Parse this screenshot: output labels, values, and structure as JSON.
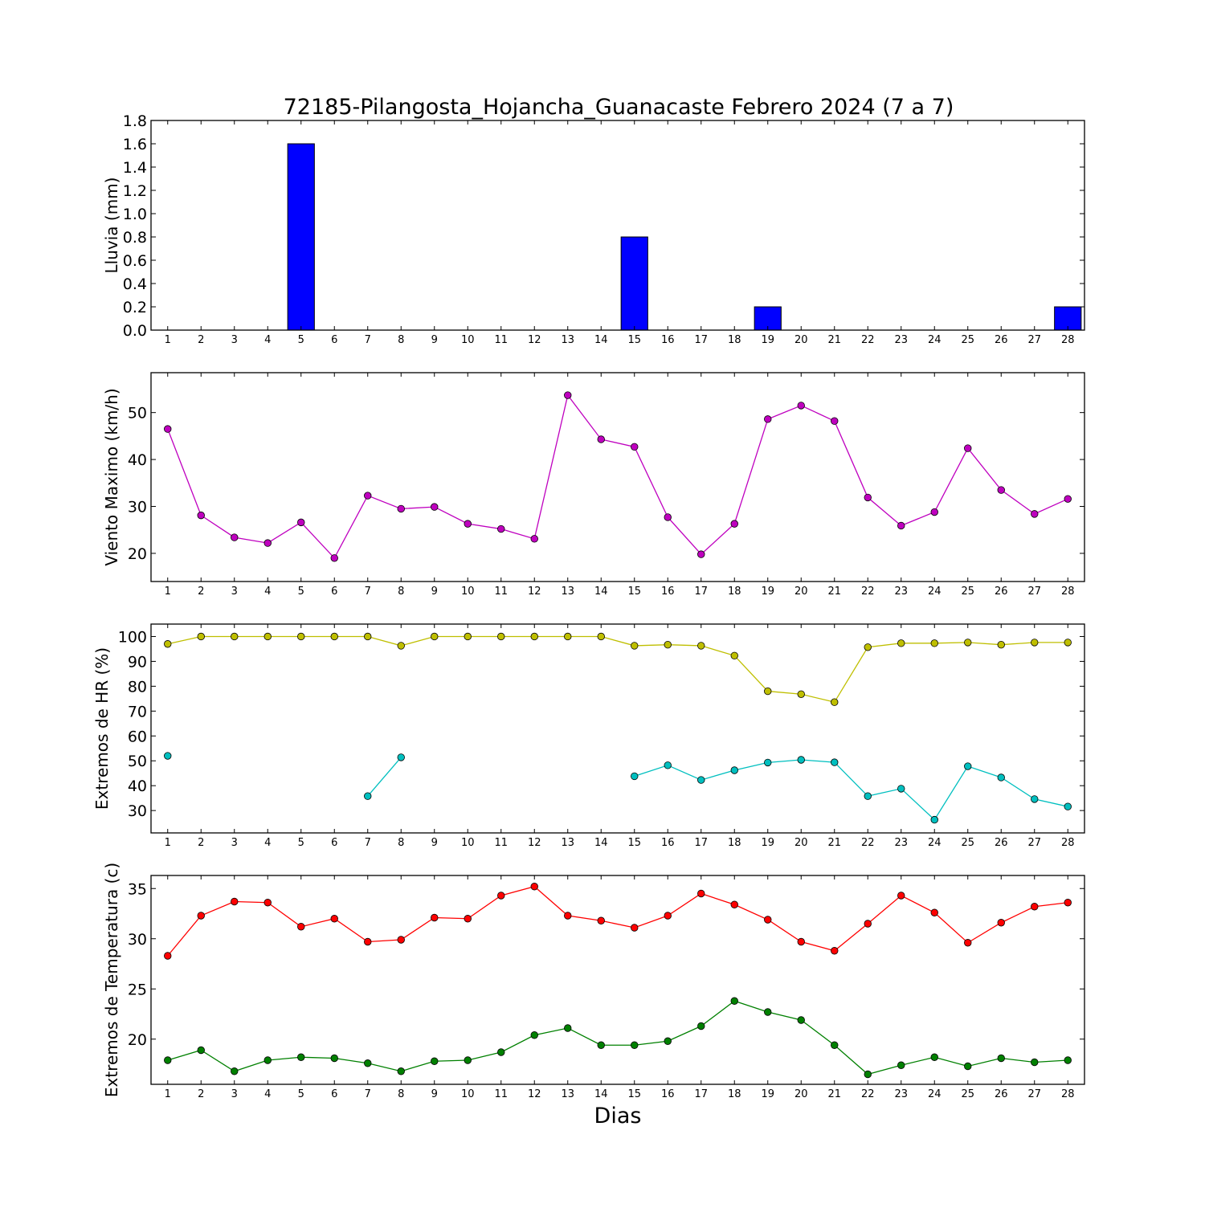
{
  "chart_data": [
    {
      "type": "bar",
      "title": "72185-Pilangosta_Hojancha_Guanacaste Febrero 2024  (7 a 7)",
      "ylabel": "Lluvia (mm)",
      "xlabel": "",
      "ylim": [
        0,
        1.8
      ],
      "yticks": [
        0.0,
        0.2,
        0.4,
        0.6,
        0.8,
        1.0,
        1.2,
        1.4,
        1.6,
        1.8
      ],
      "ytick_labels": [
        "0.0",
        "0.2",
        "0.4",
        "0.6",
        "0.8",
        "1.0",
        "1.2",
        "1.4",
        "1.6",
        "1.8"
      ],
      "categories": [
        1,
        2,
        3,
        4,
        5,
        6,
        7,
        8,
        9,
        10,
        11,
        12,
        13,
        14,
        15,
        16,
        17,
        18,
        19,
        20,
        21,
        22,
        23,
        24,
        25,
        26,
        27,
        28
      ],
      "values": [
        0,
        0,
        0,
        0,
        1.6,
        0,
        0,
        0,
        0,
        0,
        0,
        0,
        0,
        0,
        0.8,
        0,
        0,
        0,
        0.2,
        0,
        0,
        0,
        0,
        0,
        0,
        0,
        0,
        0.2
      ],
      "color": "#0000ff",
      "grid": false
    },
    {
      "type": "line",
      "ylabel": "Viento Maximo (km/h)",
      "xlabel": "",
      "ylim": [
        14,
        58.5
      ],
      "yticks": [
        20,
        30,
        40,
        50
      ],
      "ytick_labels": [
        "20",
        "30",
        "40",
        "50"
      ],
      "x": [
        1,
        2,
        3,
        4,
        5,
        6,
        7,
        8,
        9,
        10,
        11,
        12,
        13,
        14,
        15,
        16,
        17,
        18,
        19,
        20,
        21,
        22,
        23,
        24,
        25,
        26,
        27,
        28
      ],
      "series": [
        {
          "color": "#bf00bf",
          "values": [
            46.5,
            28.1,
            23.4,
            22.2,
            26.6,
            19,
            32.3,
            29.5,
            29.9,
            26.3,
            25.2,
            23.1,
            53.7,
            44.3,
            42.7,
            27.7,
            19.8,
            26.3,
            48.6,
            51.5,
            48.2,
            31.9,
            25.9,
            28.8,
            42.4,
            33.5,
            28.4,
            31.6
          ]
        }
      ],
      "grid": false
    },
    {
      "type": "line",
      "ylabel": "Extremos de HR (%)",
      "xlabel": "",
      "ylim": [
        21,
        105
      ],
      "yticks": [
        30,
        40,
        50,
        60,
        70,
        80,
        90,
        100
      ],
      "ytick_labels": [
        "30",
        "40",
        "50",
        "60",
        "70",
        "80",
        "90",
        "100"
      ],
      "x": [
        1,
        2,
        3,
        4,
        5,
        6,
        7,
        8,
        9,
        10,
        11,
        12,
        13,
        14,
        15,
        16,
        17,
        18,
        19,
        20,
        21,
        22,
        23,
        24,
        25,
        26,
        27,
        28
      ],
      "series": [
        {
          "color": "#bfbf00",
          "values": [
            97,
            100,
            100,
            100,
            100,
            100,
            100,
            96.3,
            100,
            100,
            100,
            100,
            100,
            100,
            96.3,
            96.7,
            96.3,
            92.3,
            78,
            76.8,
            73.6,
            95.7,
            97.3,
            97.3,
            97.6,
            96.7,
            97.6,
            97.6
          ]
        },
        {
          "color": "#00bfbf",
          "values": [
            52,
            null,
            null,
            null,
            null,
            null,
            35.8,
            51.4,
            null,
            null,
            null,
            null,
            null,
            null,
            43.8,
            48.2,
            42.3,
            46.2,
            49.3,
            50.4,
            49.4,
            35.8,
            38.8,
            26.3,
            47.8,
            43.3,
            34.6,
            31.6
          ]
        }
      ],
      "grid": false
    },
    {
      "type": "line",
      "ylabel": "Extremos de Temperatura (c)",
      "xlabel": "Dias",
      "ylim": [
        15.5,
        36.3
      ],
      "yticks": [
        20,
        25,
        30,
        35
      ],
      "ytick_labels": [
        "20",
        "25",
        "30",
        "35"
      ],
      "x": [
        1,
        2,
        3,
        4,
        5,
        6,
        7,
        8,
        9,
        10,
        11,
        12,
        13,
        14,
        15,
        16,
        17,
        18,
        19,
        20,
        21,
        22,
        23,
        24,
        25,
        26,
        27,
        28
      ],
      "series": [
        {
          "color": "#ff0000",
          "values": [
            28.3,
            32.3,
            33.7,
            33.6,
            31.2,
            32,
            29.7,
            29.9,
            32.1,
            32,
            34.3,
            35.2,
            32.3,
            31.8,
            31.1,
            32.3,
            34.5,
            33.4,
            31.9,
            29.7,
            28.8,
            31.5,
            34.3,
            32.6,
            29.6,
            31.6,
            33.2,
            33.6
          ]
        },
        {
          "color": "#008000",
          "values": [
            17.9,
            18.9,
            16.8,
            17.9,
            18.2,
            18.1,
            17.6,
            16.8,
            17.8,
            17.9,
            18.7,
            20.4,
            21.1,
            19.4,
            19.4,
            19.8,
            21.3,
            23.8,
            22.7,
            21.9,
            19.4,
            16.5,
            17.4,
            18.2,
            17.3,
            18.1,
            17.7,
            17.9
          ]
        }
      ],
      "grid": false
    }
  ]
}
